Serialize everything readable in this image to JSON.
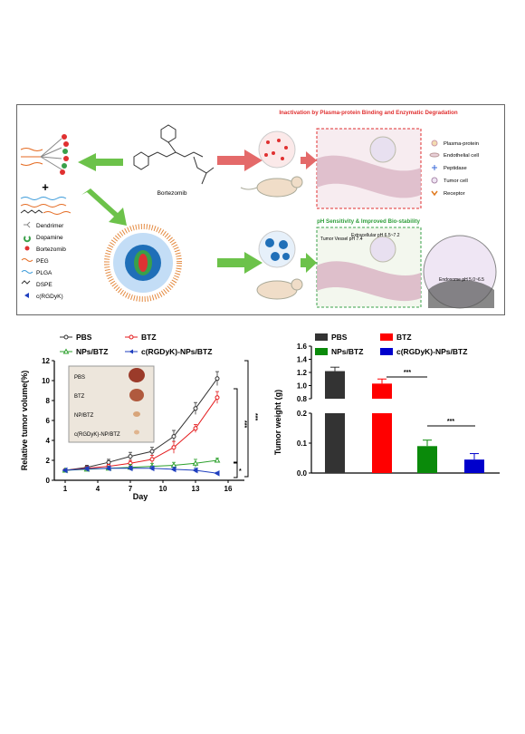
{
  "scheme": {
    "drug_name": "Bortezomib",
    "legend": [
      "Dendrimer",
      "Dopamine",
      "Bortezomib",
      "PEG",
      "PLGA",
      "DSPE",
      "c(RGDyK)"
    ],
    "top_title": "Inactivation by Plasma-protein Binding and Enzymatic Degradation",
    "top_legend": [
      "Plasma-protein",
      "Endothelial cell",
      "Peptidase",
      "Tumor cell",
      "Receptor"
    ],
    "bottom_title": "pH Sensitivity & Improved Bio-stability",
    "tumor_vessel": "Tumor Vessel pH 7.4",
    "extracellular": "Extracellular pH 6.5~7.2",
    "endosome": "Endosome pH 5.0~6.5",
    "plus_sign": "+",
    "colors": {
      "title_red": "#e03030",
      "title_green": "#2e9e3a",
      "arrow_green": "#6cc24a",
      "arrow_red": "#e46a6a"
    }
  },
  "chart_data": [
    {
      "type": "line",
      "title": "",
      "xlabel": "Day",
      "ylabel": "Relative tumor volume(%)",
      "x_ticks": [
        "1",
        "4",
        "7",
        "10",
        "13",
        "16"
      ],
      "y_ticks": [
        "0",
        "2",
        "4",
        "6",
        "8",
        "10",
        "12"
      ],
      "xlim": [
        0,
        16.5
      ],
      "ylim": [
        0,
        12
      ],
      "legend_placement": "top",
      "x": [
        1,
        3,
        5,
        7,
        9,
        11,
        13,
        15
      ],
      "series": [
        {
          "name": "PBS",
          "color": "#333333",
          "marker": "circle",
          "values": [
            1.0,
            1.3,
            1.8,
            2.4,
            2.9,
            4.4,
            7.2,
            10.2
          ],
          "errors": [
            0.1,
            0.2,
            0.3,
            0.4,
            0.4,
            0.6,
            0.6,
            0.7
          ]
        },
        {
          "name": "BTZ",
          "color": "#e41a1c",
          "marker": "circle",
          "values": [
            1.0,
            1.2,
            1.4,
            1.7,
            2.1,
            3.3,
            5.2,
            8.3
          ],
          "errors": [
            0.1,
            0.2,
            0.2,
            0.3,
            0.4,
            0.6,
            0.4,
            0.6
          ]
        },
        {
          "name": "NPs/BTZ",
          "color": "#2ca02c",
          "marker": "triangle",
          "values": [
            1.0,
            1.1,
            1.2,
            1.3,
            1.4,
            1.5,
            1.7,
            2.0
          ],
          "errors": [
            0.1,
            0.2,
            0.2,
            0.3,
            0.3,
            0.3,
            0.4,
            0.2
          ]
        },
        {
          "name": "c(RGDyK)-NPs/BTZ",
          "color": "#1f3fbf",
          "marker": "triangle-left",
          "values": [
            1.0,
            1.15,
            1.2,
            1.2,
            1.2,
            1.1,
            1.0,
            0.7
          ],
          "errors": [
            0.1,
            0.2,
            0.2,
            0.2,
            0.2,
            0.2,
            0.2,
            0.1
          ]
        }
      ],
      "significance": [
        "***",
        "***",
        "*"
      ],
      "inset_labels": [
        "PBS",
        "BTZ",
        "NP/BTZ",
        "c(RGDyK)-NP/BTZ"
      ]
    },
    {
      "type": "bar",
      "title": "",
      "xlabel": "",
      "ylabel": "Tumor weight (g)",
      "y_ticks_upper": [
        "0.8",
        "1.0",
        "1.2",
        "1.4",
        "1.6"
      ],
      "y_ticks_lower": [
        "0.0",
        "0.1",
        "0.2"
      ],
      "axis_break": [
        0.2,
        0.8
      ],
      "legend_placement": "top",
      "series": [
        {
          "name": "PBS",
          "color": "#333333",
          "value": 1.22,
          "error": 0.06
        },
        {
          "name": "BTZ",
          "color": "#ff0000",
          "value": 1.03,
          "error": 0.07
        },
        {
          "name": "NPs/BTZ",
          "color": "#0a8a0a",
          "value": 0.09,
          "error": 0.02
        },
        {
          "name": "c(RGDyK)-NPs/BTZ",
          "color": "#0000cc",
          "value": 0.045,
          "error": 0.02
        }
      ],
      "significance": [
        "***",
        "***"
      ]
    }
  ]
}
